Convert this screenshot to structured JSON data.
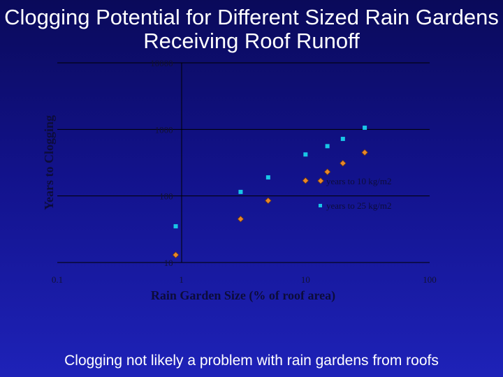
{
  "title": "Clogging Potential for Different Sized Rain Gardens Receiving Roof Runoff",
  "caption": "Clogging not likely a problem with rain gardens from roofs",
  "chart_data": {
    "type": "scatter",
    "xscale": "log",
    "yscale": "log",
    "xlim": [
      0.1,
      100
    ],
    "ylim": [
      10,
      10000
    ],
    "xticks": [
      "0.1",
      "1",
      "10",
      "100"
    ],
    "yticks": [
      "10",
      "100",
      "1000",
      "10000"
    ],
    "xlabel": "Rain Garden Size (% of roof area)",
    "ylabel": "Years to Clogging",
    "grid": true,
    "legend_position": "right",
    "series": [
      {
        "name": "years to 10 kg/m2",
        "marker": "diamond",
        "color": "#e8862a",
        "x": [
          0.9,
          3,
          5,
          10,
          15,
          20,
          30
        ],
        "y": [
          13,
          45,
          85,
          170,
          230,
          310,
          450
        ]
      },
      {
        "name": "years to 25 kg/m2",
        "marker": "square",
        "color": "#19c6e6",
        "x": [
          0.9,
          3,
          5,
          10,
          15,
          20,
          30
        ],
        "y": [
          35,
          115,
          190,
          420,
          560,
          720,
          1060
        ]
      }
    ]
  }
}
